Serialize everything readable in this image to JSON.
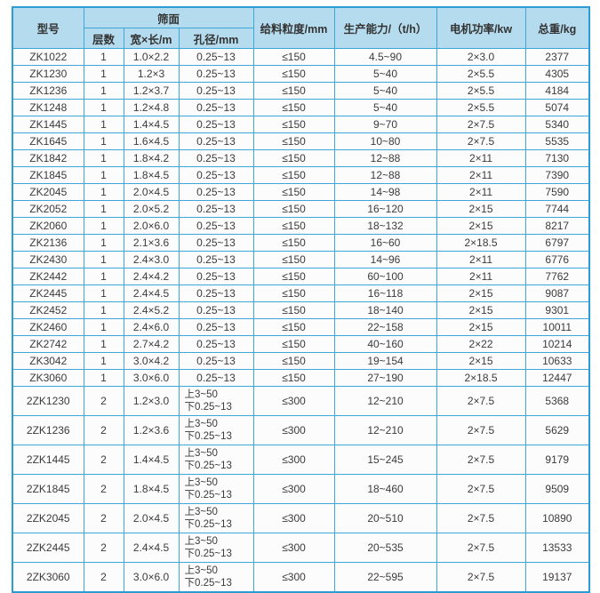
{
  "table": {
    "group_header": "筛面",
    "columns": {
      "model": "型号",
      "layers": "层数",
      "size": "宽×长/m",
      "aperture": "孔径/mm",
      "feed": "给料粒度/mm",
      "capacity": "生产能力/（t/h）",
      "power": "电机功率/kw",
      "weight": "总重/kg"
    },
    "colors": {
      "border_blue": "#3fa6d9",
      "outer_border_blue": "#2e9cd4",
      "header_bg": "#b4dcee",
      "row_bg": "#fcfcfc",
      "text": "#3b3b3b"
    },
    "rows": [
      {
        "model": "ZK1022",
        "layers": "1",
        "size": "1.0×2.2",
        "aperture": [
          "0.25~13"
        ],
        "feed": "≤150",
        "capacity": "4.5~90",
        "power": "2×3.0",
        "weight": "2377"
      },
      {
        "model": "ZK1230",
        "layers": "1",
        "size": "1.2×3",
        "aperture": [
          "0.25~13"
        ],
        "feed": "≤150",
        "capacity": "5~40",
        "power": "2×5.5",
        "weight": "4305"
      },
      {
        "model": "ZK1236",
        "layers": "1",
        "size": "1.2×3.7",
        "aperture": [
          "0.25~13"
        ],
        "feed": "≤150",
        "capacity": "5~40",
        "power": "2×5.5",
        "weight": "4184"
      },
      {
        "model": "ZK1248",
        "layers": "1",
        "size": "1.2×4.8",
        "aperture": [
          "0.25~13"
        ],
        "feed": "≤150",
        "capacity": "5~40",
        "power": "2×5.5",
        "weight": "5074"
      },
      {
        "model": "ZK1445",
        "layers": "1",
        "size": "1.4×4.5",
        "aperture": [
          "0.25~13"
        ],
        "feed": "≤150",
        "capacity": "9~70",
        "power": "2×7.5",
        "weight": "5340"
      },
      {
        "model": "ZK1645",
        "layers": "1",
        "size": "1.6×4.5",
        "aperture": [
          "0.25~13"
        ],
        "feed": "≤150",
        "capacity": "10~80",
        "power": "2×7.5",
        "weight": "5535"
      },
      {
        "model": "ZK1842",
        "layers": "1",
        "size": "1.8×4.2",
        "aperture": [
          "0.25~13"
        ],
        "feed": "≤150",
        "capacity": "12~88",
        "power": "2×11",
        "weight": "7130"
      },
      {
        "model": "ZK1845",
        "layers": "1",
        "size": "1.8×4.5",
        "aperture": [
          "0.25~13"
        ],
        "feed": "≤150",
        "capacity": "12~88",
        "power": "2×11",
        "weight": "7390"
      },
      {
        "model": "ZK2045",
        "layers": "1",
        "size": "2.0×4.5",
        "aperture": [
          "0.25~13"
        ],
        "feed": "≤150",
        "capacity": "14~98",
        "power": "2×11",
        "weight": "7590"
      },
      {
        "model": "ZK2052",
        "layers": "1",
        "size": "2.0×5.2",
        "aperture": [
          "0.25~13"
        ],
        "feed": "≤150",
        "capacity": "16~120",
        "power": "2×15",
        "weight": "7744"
      },
      {
        "model": "ZK2060",
        "layers": "1",
        "size": "2.0×6.0",
        "aperture": [
          "0.25~13"
        ],
        "feed": "≤150",
        "capacity": "18~132",
        "power": "2×15",
        "weight": "8217"
      },
      {
        "model": "ZK2136",
        "layers": "1",
        "size": "2.1×3.6",
        "aperture": [
          "0.25~13"
        ],
        "feed": "≤150",
        "capacity": "16~60",
        "power": "2×18.5",
        "weight": "6797"
      },
      {
        "model": "ZK2430",
        "layers": "1",
        "size": "2.4×3.0",
        "aperture": [
          "0.25~13"
        ],
        "feed": "≤150",
        "capacity": "14~96",
        "power": "2×11",
        "weight": "6776"
      },
      {
        "model": "ZK2442",
        "layers": "1",
        "size": "2.4×4.2",
        "aperture": [
          "0.25~13"
        ],
        "feed": "≤150",
        "capacity": "60~100",
        "power": "2×11",
        "weight": "7762"
      },
      {
        "model": "ZK2445",
        "layers": "1",
        "size": "2.4×4.5",
        "aperture": [
          "0.25~13"
        ],
        "feed": "≤150",
        "capacity": "16~118",
        "power": "2×15",
        "weight": "9087"
      },
      {
        "model": "ZK2452",
        "layers": "1",
        "size": "2.4×5.2",
        "aperture": [
          "0.25~13"
        ],
        "feed": "≤150",
        "capacity": "18~140",
        "power": "2×15",
        "weight": "9301"
      },
      {
        "model": "ZK2460",
        "layers": "1",
        "size": "2.4×6.0",
        "aperture": [
          "0.25~13"
        ],
        "feed": "≤150",
        "capacity": "22~158",
        "power": "2×15",
        "weight": "10011"
      },
      {
        "model": "ZK2742",
        "layers": "1",
        "size": "2.7×4.2",
        "aperture": [
          "0.25~13"
        ],
        "feed": "≤150",
        "capacity": "40~160",
        "power": "2×22",
        "weight": "10214"
      },
      {
        "model": "ZK3042",
        "layers": "1",
        "size": "3.0×4.2",
        "aperture": [
          "0.25~13"
        ],
        "feed": "≤150",
        "capacity": "19~154",
        "power": "2×15",
        "weight": "10633"
      },
      {
        "model": "ZK3060",
        "layers": "1",
        "size": "3.0×6.0",
        "aperture": [
          "0.25~13"
        ],
        "feed": "≤150",
        "capacity": "27~190",
        "power": "2×18.5",
        "weight": "12447"
      },
      {
        "model": "2ZK1230",
        "layers": "2",
        "size": "1.2×3.0",
        "aperture": [
          "上3~50",
          "下0.25~13"
        ],
        "feed": "≤300",
        "capacity": "12~210",
        "power": "2×7.5",
        "weight": "5368"
      },
      {
        "model": "2ZK1236",
        "layers": "2",
        "size": "1.2×3.6",
        "aperture": [
          "上3~50",
          "下0.25~13"
        ],
        "feed": "≤300",
        "capacity": "12~210",
        "power": "2×7.5",
        "weight": "5629"
      },
      {
        "model": "2ZK1445",
        "layers": "2",
        "size": "1.4×4.5",
        "aperture": [
          "上3~50",
          "下0.25~13"
        ],
        "feed": "≤300",
        "capacity": "15~245",
        "power": "2×7.5",
        "weight": "9179"
      },
      {
        "model": "2ZK1845",
        "layers": "2",
        "size": "1.8×4.5",
        "aperture": [
          "上3~50",
          "下0.25~13"
        ],
        "feed": "≤300",
        "capacity": "18~460",
        "power": "2×7.5",
        "weight": "9509"
      },
      {
        "model": "2ZK2045",
        "layers": "2",
        "size": "2.0×4.5",
        "aperture": [
          "上3~50",
          "下0.25~13"
        ],
        "feed": "≤300",
        "capacity": "20~510",
        "power": "2×7.5",
        "weight": "10890"
      },
      {
        "model": "2ZK2445",
        "layers": "2",
        "size": "2.4×4.5",
        "aperture": [
          "上3~50",
          "下0.25~13"
        ],
        "feed": "≤300",
        "capacity": "20~535",
        "power": "2×7.5",
        "weight": "13533"
      },
      {
        "model": "2ZK3060",
        "layers": "2",
        "size": "3.0×6.0",
        "aperture": [
          "上3~50",
          "下0.25~13"
        ],
        "feed": "≤300",
        "capacity": "22~595",
        "power": "2×7.5",
        "weight": "19137"
      }
    ]
  }
}
